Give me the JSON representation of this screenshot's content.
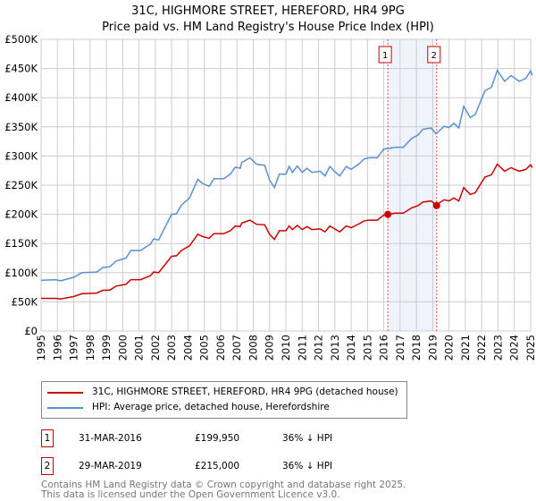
{
  "chart_data": {
    "type": "line",
    "title": "31C, HIGHMORE STREET, HEREFORD, HR4 9PG",
    "subtitle": "Price paid vs. HM Land Registry's House Price Index (HPI)",
    "xlim": [
      1995,
      2025.2
    ],
    "ylim": [
      0,
      500000
    ],
    "y_ticks": [
      0,
      50000,
      100000,
      150000,
      200000,
      250000,
      300000,
      350000,
      400000,
      450000,
      500000
    ],
    "y_tick_labels": [
      "£0",
      "£50K",
      "£100K",
      "£150K",
      "£200K",
      "£250K",
      "£300K",
      "£350K",
      "£400K",
      "£450K",
      "£500K"
    ],
    "x_ticks": [
      "1995",
      "1996",
      "1997",
      "1998",
      "1999",
      "2000",
      "2001",
      "2002",
      "2003",
      "2004",
      "2005",
      "2006",
      "2007",
      "2008",
      "2009",
      "2010",
      "2011",
      "2012",
      "2013",
      "2014",
      "2015",
      "2016",
      "2017",
      "2018",
      "2019",
      "2020",
      "2021",
      "2022",
      "2023",
      "2024",
      "2025"
    ],
    "grid": true,
    "x": [
      1995.0,
      1995.9,
      1996.2,
      1997.0,
      1997.5,
      1998.4,
      1998.8,
      1999.2,
      1999.6,
      2000.2,
      2000.5,
      2001.1,
      2001.7,
      2001.9,
      2002.2,
      2003.0,
      2003.3,
      2003.6,
      2004.1,
      2004.6,
      2004.9,
      2005.3,
      2005.6,
      2006.2,
      2006.6,
      2006.9,
      2007.2,
      2007.3,
      2007.8,
      2008.2,
      2008.7,
      2009.0,
      2009.3,
      2009.6,
      2010.0,
      2010.2,
      2010.4,
      2010.7,
      2011.0,
      2011.3,
      2011.6,
      2012.1,
      2012.4,
      2012.7,
      2013.0,
      2013.3,
      2013.7,
      2014.0,
      2014.5,
      2014.8,
      2015.1,
      2015.6,
      2016.0,
      2016.3,
      2016.7,
      2017.2,
      2017.7,
      2018.1,
      2018.4,
      2018.9,
      2019.2,
      2019.7,
      2020.0,
      2020.3,
      2020.6,
      2020.9,
      2021.3,
      2021.6,
      2022.2,
      2022.6,
      2022.96,
      2023.4,
      2023.8,
      2024.3,
      2024.7,
      2025.0,
      2025.1
    ],
    "series": [
      {
        "name": "31C, HIGHMORE STREET, HEREFORD, HR4 9PG (detached house)",
        "color": "#cc0000",
        "values": [
          56000,
          56000,
          55000,
          59000,
          64000,
          65000,
          70000,
          70000,
          77000,
          80000,
          88000,
          88000,
          95000,
          101000,
          100000,
          128000,
          129000,
          138000,
          146000,
          166000,
          162000,
          159000,
          167000,
          167000,
          172000,
          180000,
          179000,
          185000,
          190000,
          183000,
          182000,
          166000,
          157000,
          172000,
          172000,
          180000,
          174000,
          181000,
          174000,
          179000,
          174000,
          175000,
          170000,
          180000,
          175000,
          170000,
          180000,
          177000,
          184000,
          189000,
          190000,
          190000,
          199000,
          200000,
          202000,
          202000,
          211000,
          215000,
          221000,
          223000,
          216000,
          225000,
          223000,
          228000,
          223000,
          246000,
          234000,
          237000,
          264000,
          268000,
          286000,
          274000,
          280000,
          274000,
          277000,
          285000,
          280000
        ]
      },
      {
        "name": "HPI: Average price, detached house, Herefordshire",
        "color": "#5b8fd0",
        "values": [
          87000,
          88000,
          86000,
          92000,
          100000,
          101000,
          109000,
          110000,
          120000,
          125000,
          138000,
          138000,
          149000,
          158000,
          156000,
          200000,
          201000,
          216000,
          228000,
          260000,
          253000,
          248000,
          261000,
          261000,
          269000,
          281000,
          279000,
          289000,
          297000,
          286000,
          284000,
          259000,
          246000,
          269000,
          269000,
          282000,
          272000,
          283000,
          272000,
          279000,
          272000,
          274000,
          266000,
          282000,
          273000,
          266000,
          282000,
          277000,
          287000,
          295000,
          297000,
          297000,
          312000,
          313000,
          315000,
          315000,
          330000,
          336000,
          346000,
          348000,
          338000,
          351000,
          349000,
          356000,
          348000,
          385000,
          366000,
          371000,
          412000,
          418000,
          447000,
          428000,
          438000,
          428000,
          433000,
          446000,
          438000
        ]
      }
    ],
    "sales": [
      {
        "label": "1",
        "date": "31-MAR-2016",
        "x": 2016.25,
        "price": "£199,950",
        "value": 199950,
        "hpi_diff": "36% ↓ HPI"
      },
      {
        "label": "2",
        "date": "29-MAR-2019",
        "x": 2019.24,
        "price": "£215,000",
        "value": 215000,
        "hpi_diff": "36% ↓ HPI"
      }
    ],
    "shade_color": "#eef3fc"
  },
  "footer": {
    "line1": "Contains HM Land Registry data © Crown copyright and database right 2025.",
    "line2": "This data is licensed under the Open Government Licence v3.0."
  }
}
